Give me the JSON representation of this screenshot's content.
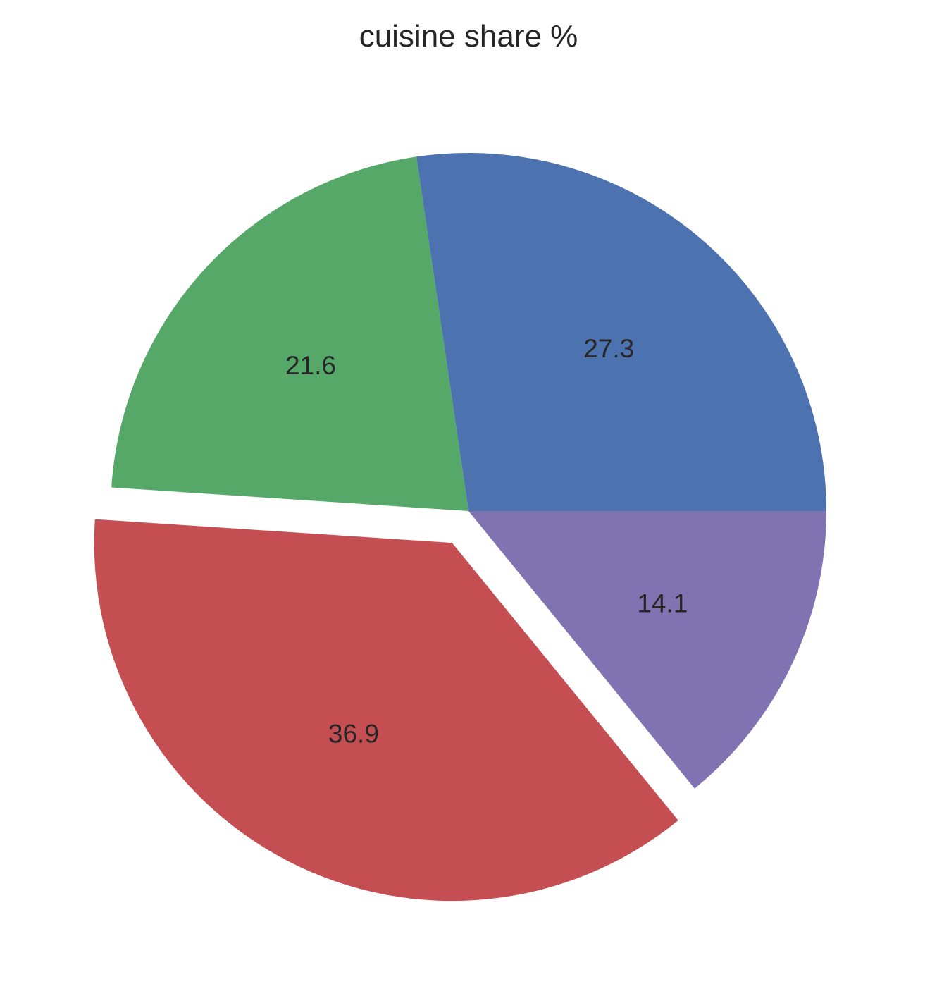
{
  "chart_data": {
    "type": "pie",
    "title": "cuisine share %",
    "start_angle_deg": 0,
    "direction": "counterclockwise",
    "slices": [
      {
        "value": 27.3,
        "label": "27.3",
        "color": "#4c72b0",
        "exploded": false
      },
      {
        "value": 21.6,
        "label": "21.6",
        "color": "#55a868",
        "exploded": false
      },
      {
        "value": 36.9,
        "label": "36.9",
        "color": "#c44e52",
        "exploded": true
      },
      {
        "value": 14.1,
        "label": "14.1",
        "color": "#8172b2",
        "exploded": false
      }
    ]
  }
}
